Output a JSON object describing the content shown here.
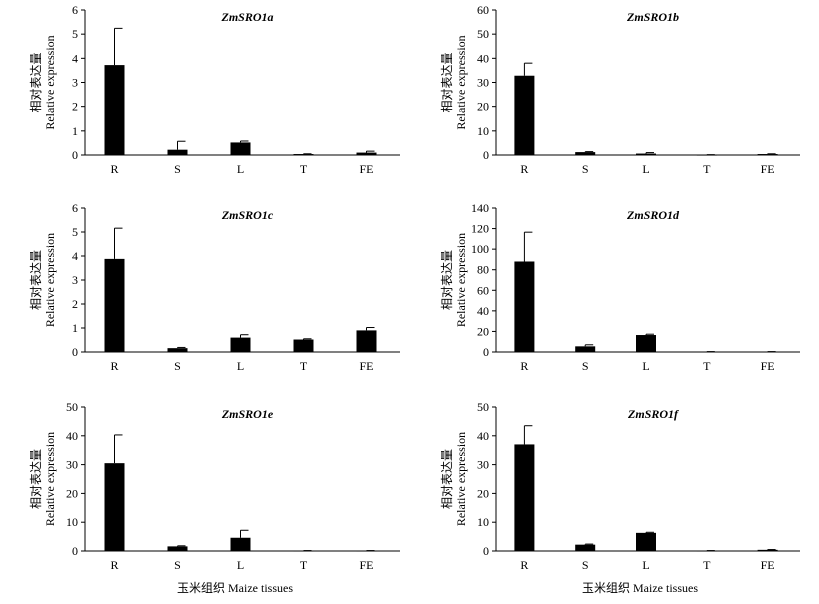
{
  "figure": {
    "ylabel_cn": "相对表达量",
    "ylabel_en": "Relative expression",
    "xlabel": "玉米组织 Maize tissues"
  },
  "chart_data": [
    {
      "type": "bar",
      "title": "ZmSRO1a",
      "categories": [
        "R",
        "S",
        "L",
        "T",
        "FE"
      ],
      "values": [
        3.72,
        0.22,
        0.52,
        0.04,
        0.1
      ],
      "errors": [
        1.52,
        0.35,
        0.06,
        0.01,
        0.06
      ],
      "ylim": [
        0,
        6
      ],
      "yticks": [
        0,
        1,
        2,
        3,
        4,
        5,
        6
      ]
    },
    {
      "type": "bar",
      "title": "ZmSRO1b",
      "categories": [
        "R",
        "S",
        "L",
        "T",
        "FE"
      ],
      "values": [
        32.8,
        1.2,
        0.6,
        0.1,
        0.4
      ],
      "errors": [
        5.2,
        0.2,
        0.4,
        0.05,
        0.1
      ],
      "ylim": [
        0,
        60
      ],
      "yticks": [
        0,
        10,
        20,
        30,
        40,
        50,
        60
      ]
    },
    {
      "type": "bar",
      "title": "ZmSRO1c",
      "categories": [
        "R",
        "S",
        "L",
        "T",
        "FE"
      ],
      "values": [
        3.88,
        0.16,
        0.6,
        0.52,
        0.9
      ],
      "errors": [
        1.28,
        0.03,
        0.12,
        0.03,
        0.12
      ],
      "ylim": [
        0,
        6
      ],
      "yticks": [
        0,
        1,
        2,
        3,
        4,
        5,
        6
      ]
    },
    {
      "type": "bar",
      "title": "ZmSRO1d",
      "categories": [
        "R",
        "S",
        "L",
        "T",
        "FE"
      ],
      "values": [
        88,
        5.5,
        16.5,
        0.3,
        0.3
      ],
      "errors": [
        28.5,
        1.5,
        0.8,
        0.1,
        0.1
      ],
      "ylim": [
        0,
        140
      ],
      "yticks": [
        0,
        20,
        40,
        60,
        80,
        100,
        120,
        140
      ]
    },
    {
      "type": "bar",
      "title": "ZmSRO1e",
      "categories": [
        "R",
        "S",
        "L",
        "T",
        "FE"
      ],
      "values": [
        30.5,
        1.6,
        4.6,
        0.1,
        0.1
      ],
      "errors": [
        9.8,
        0.2,
        2.6,
        0.05,
        0.05
      ],
      "ylim": [
        0,
        50
      ],
      "yticks": [
        0,
        10,
        20,
        30,
        40,
        50
      ]
    },
    {
      "type": "bar",
      "title": "ZmSRO1f",
      "categories": [
        "R",
        "S",
        "L",
        "T",
        "FE"
      ],
      "values": [
        37,
        2.2,
        6.3,
        0.1,
        0.4
      ],
      "errors": [
        6.5,
        0.2,
        0.2,
        0.05,
        0.1
      ],
      "ylim": [
        0,
        50
      ],
      "yticks": [
        0,
        10,
        20,
        30,
        40,
        50
      ]
    }
  ]
}
